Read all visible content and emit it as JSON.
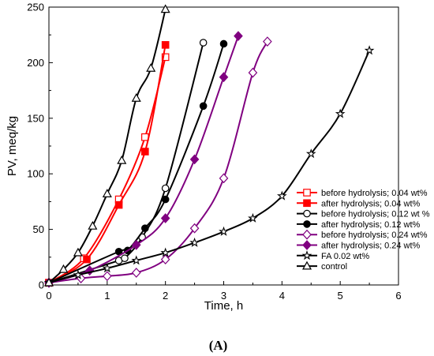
{
  "chart_data": {
    "type": "line",
    "xlabel": "Time, h",
    "ylabel": "PV, meq/kg",
    "xlim": [
      0,
      6
    ],
    "ylim": [
      0,
      250
    ],
    "xticks": [
      0,
      1,
      2,
      3,
      4,
      5,
      6
    ],
    "yticks": [
      0,
      50,
      100,
      150,
      200,
      250
    ],
    "panel_label": "(A)",
    "legend_position": "bottom-right",
    "series": [
      {
        "name": "before hydrolysis; 0.04 wt%",
        "color": "#ff0000",
        "marker": "square-open",
        "x": [
          0,
          0.6,
          1.2,
          1.65,
          2.0
        ],
        "y": [
          2,
          24,
          77,
          133,
          205
        ]
      },
      {
        "name": "after hydrolysis; 0.04 wt%",
        "color": "#ff0000",
        "marker": "square-filled",
        "x": [
          0,
          0.65,
          1.2,
          1.65,
          2.0
        ],
        "y": [
          2,
          23,
          72,
          120,
          216
        ]
      },
      {
        "name": "before hydrolysis; 0.12 wt %",
        "color": "#000000",
        "marker": "circle-open",
        "x": [
          0,
          1.2,
          1.3,
          1.6,
          2.0,
          2.65
        ],
        "y": [
          2,
          22,
          24,
          43,
          87,
          218
        ]
      },
      {
        "name": "after hydrolysis; 0.12 wt%",
        "color": "#000000",
        "marker": "circle-filled",
        "x": [
          0,
          1.2,
          1.35,
          1.65,
          2.0,
          2.65,
          3.0
        ],
        "y": [
          2,
          30,
          31,
          51,
          77,
          161,
          217
        ]
      },
      {
        "name": "before hydrolysis; 0.24 wt%",
        "color": "#800080",
        "marker": "diamond-open",
        "x": [
          0,
          0.55,
          1.0,
          1.5,
          2.0,
          2.5,
          3.0,
          3.5,
          3.75
        ],
        "y": [
          2,
          6,
          8,
          11,
          23,
          51,
          96,
          191,
          219
        ]
      },
      {
        "name": "after hydrolysis; 0.24 wt%",
        "color": "#800080",
        "marker": "diamond-filled",
        "x": [
          0,
          0.7,
          1.5,
          2.0,
          2.5,
          3.0,
          3.25
        ],
        "y": [
          2,
          13,
          36,
          60,
          113,
          187,
          224
        ]
      },
      {
        "name": "FA 0.02 wt%",
        "color": "#000000",
        "marker": "star",
        "x": [
          0,
          0.5,
          1.0,
          1.5,
          2.0,
          2.5,
          3.0,
          3.5,
          4.0,
          4.5,
          5.0,
          5.5
        ],
        "y": [
          2,
          9,
          15,
          22,
          29,
          38,
          48,
          60,
          80,
          118,
          154,
          211
        ]
      },
      {
        "name": "control",
        "color": "#000000",
        "marker": "triangle-open",
        "x": [
          0,
          0.25,
          0.5,
          0.75,
          1.0,
          1.25,
          1.5,
          1.75,
          2.0
        ],
        "y": [
          2,
          14,
          29,
          53,
          82,
          112,
          168,
          195,
          248
        ]
      }
    ]
  }
}
